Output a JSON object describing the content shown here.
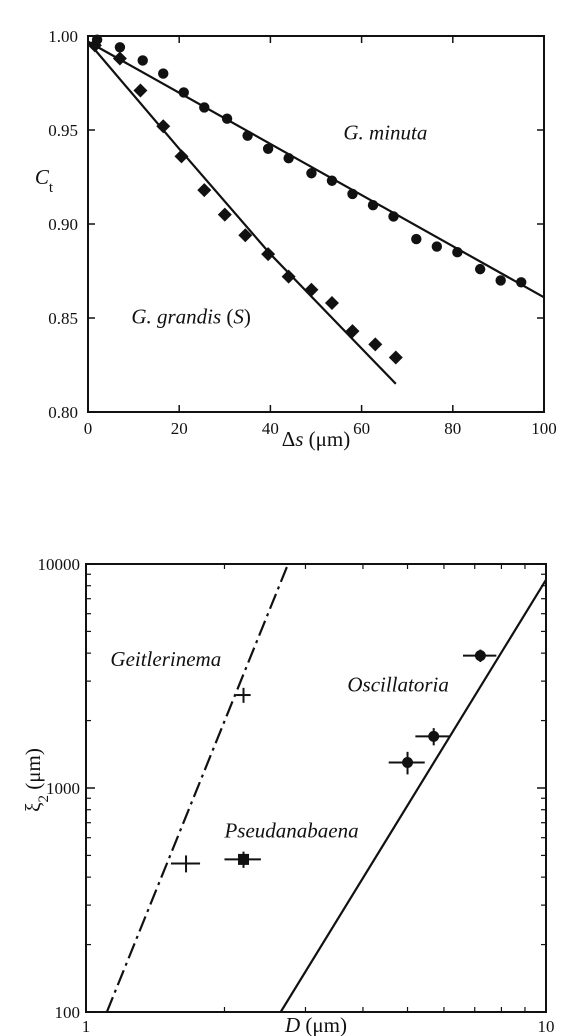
{
  "chart_data": [
    {
      "type": "scatter",
      "xlabel": "Δs (μm)",
      "ylabel": "C_t",
      "xlim": [
        0,
        100
      ],
      "ylim": [
        0.8,
        1.0
      ],
      "xticks": [
        "0",
        "20",
        "40",
        "60",
        "80",
        "100"
      ],
      "yticks": [
        "0.80",
        "0.85",
        "0.90",
        "0.95",
        "1.00"
      ],
      "grid": false,
      "series": [
        {
          "name": "G. minuta",
          "marker": "circle",
          "x": [
            2,
            7,
            12,
            16.5,
            21,
            25.5,
            30.5,
            35,
            39.5,
            44,
            49,
            53.5,
            58,
            62.5,
            67,
            72,
            76.5,
            81,
            86,
            90.5,
            95
          ],
          "y": [
            0.998,
            0.994,
            0.987,
            0.98,
            0.97,
            0.962,
            0.956,
            0.947,
            0.94,
            0.935,
            0.927,
            0.923,
            0.916,
            0.91,
            0.904,
            0.892,
            0.888,
            0.885,
            0.876,
            0.87,
            0.869
          ],
          "fit": {
            "x": [
              0,
              100
            ],
            "y": [
              0.997,
              0.861
            ]
          }
        },
        {
          "name": "G. grandis (S)",
          "marker": "diamond",
          "x": [
            1.5,
            7,
            11.5,
            16.5,
            20.5,
            25.5,
            30,
            34.5,
            39.5,
            44,
            49,
            53.5,
            58,
            63,
            67.5
          ],
          "y": [
            0.995,
            0.988,
            0.971,
            0.952,
            0.936,
            0.918,
            0.905,
            0.894,
            0.884,
            0.872,
            0.865,
            0.858,
            0.843,
            0.836,
            0.829
          ],
          "fit": {
            "x": [
              0,
              20,
              40,
              67.5
            ],
            "y": [
              0.997,
              0.94,
              0.884,
              0.815
            ]
          }
        }
      ],
      "annotations": [
        {
          "text": "G. minuta",
          "x": 56,
          "y": 0.945
        },
        {
          "text": "G. grandis (S)",
          "x": 9.5,
          "y": 0.847
        }
      ]
    },
    {
      "type": "scatter",
      "xlabel": "D (μm)",
      "ylabel": "ξ_2 (μm)",
      "xscale": "log",
      "yscale": "log",
      "xlim": [
        1,
        10
      ],
      "ylim": [
        100,
        10000
      ],
      "xticks": [
        "1",
        "10"
      ],
      "yticks": [
        "100",
        "1000",
        "10000"
      ],
      "grid": false,
      "points": [
        {
          "label": "Geitlerinema",
          "marker": "plus",
          "x": [
            1.65,
            2.2
          ],
          "y": [
            460,
            2600
          ],
          "xerr": [
            0.12,
            0.08
          ],
          "yerr": [
            40,
            200
          ]
        },
        {
          "label": "Pseudanabaena",
          "marker": "square",
          "x": [
            2.2
          ],
          "y": [
            480
          ],
          "xerr": [
            0.2
          ],
          "yerr": [
            40
          ]
        },
        {
          "label": "Oscillatoria",
          "marker": "circle",
          "x": [
            5.0,
            5.7,
            7.2
          ],
          "y": [
            1300,
            1700,
            3900
          ],
          "xerr": [
            0.45,
            0.5,
            0.6
          ],
          "yerr": [
            150,
            150,
            250
          ]
        }
      ],
      "lines": [
        {
          "style": "dash-dot",
          "x": [
            1.11,
            2.75
          ],
          "y": [
            100,
            10000
          ]
        },
        {
          "style": "solid",
          "x": [
            2.65,
            10
          ],
          "y": [
            100,
            8500
          ]
        }
      ],
      "annotations": [
        {
          "text": "Geitlerinema",
          "x": 1.13,
          "y": 3500
        },
        {
          "text": "Oscillatoria",
          "x": 3.7,
          "y": 2700
        },
        {
          "text": "Pseudanabaena",
          "x": 2.0,
          "y": 600
        }
      ]
    }
  ]
}
